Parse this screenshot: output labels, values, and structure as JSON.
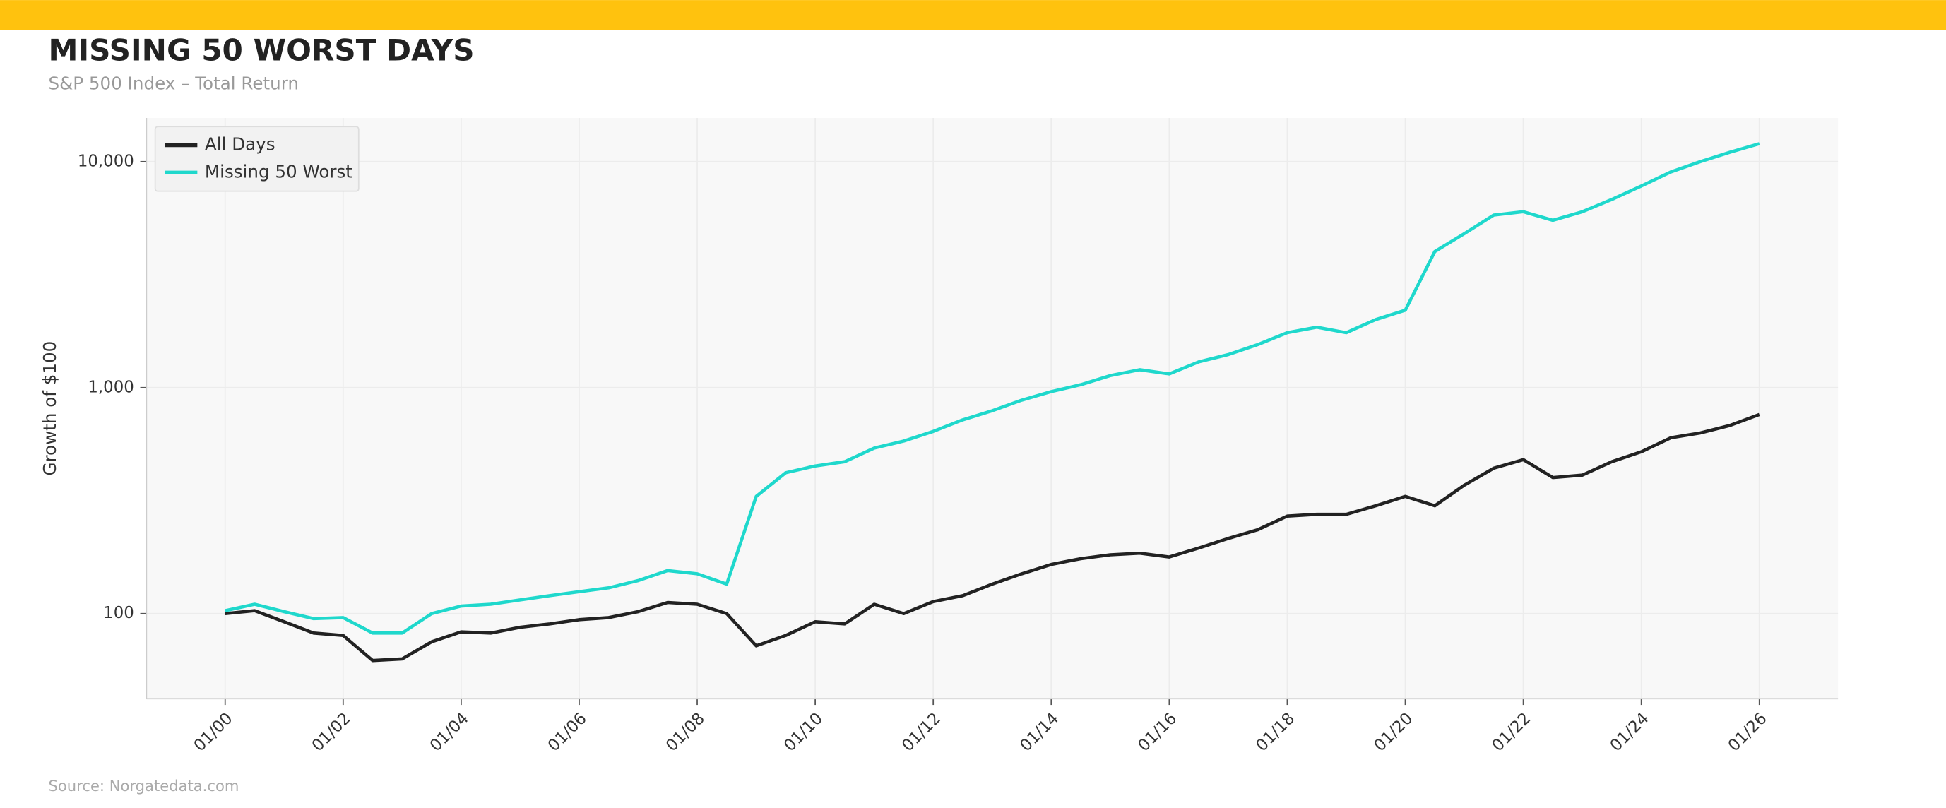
{
  "chart_data": {
    "type": "line",
    "title": "MISSING 50 WORST DAYS",
    "subtitle": "S&P 500 Index – Total Return",
    "ylabel": "Growth of $100",
    "source": "Source: Norgatedata.com",
    "log_y": true,
    "grid": true,
    "legend": "upper left",
    "x": [
      "01/00",
      "07/00",
      "01/01",
      "07/01",
      "01/02",
      "07/02",
      "01/03",
      "07/03",
      "01/04",
      "07/04",
      "01/05",
      "07/05",
      "01/06",
      "07/06",
      "01/07",
      "07/07",
      "01/08",
      "07/08",
      "01/09",
      "07/09",
      "01/10",
      "07/10",
      "01/11",
      "07/11",
      "01/12",
      "07/12",
      "01/13",
      "07/13",
      "01/14",
      "07/14",
      "01/15",
      "07/15",
      "01/16",
      "07/16",
      "01/17",
      "07/17",
      "01/18",
      "07/18",
      "01/19",
      "07/19",
      "01/20",
      "07/20",
      "01/21",
      "07/21",
      "01/22",
      "07/22",
      "01/23",
      "07/23",
      "01/24",
      "07/24",
      "01/25",
      "07/25",
      "01/26"
    ],
    "series": [
      {
        "name": "All Days",
        "color": "#222222",
        "values": [
          100,
          103,
          92,
          82,
          80,
          62,
          63,
          75,
          83,
          82,
          87,
          90,
          94,
          96,
          102,
          112,
          110,
          100,
          72,
          80,
          92,
          90,
          110,
          100,
          113,
          120,
          135,
          150,
          165,
          175,
          182,
          185,
          178,
          195,
          215,
          235,
          270,
          275,
          275,
          300,
          330,
          300,
          370,
          440,
          480,
          400,
          410,
          470,
          520,
          600,
          630,
          680,
          760
        ]
      },
      {
        "name": "Missing 50 Worst",
        "color": "#1fd8cc",
        "values": [
          103,
          110,
          102,
          95,
          96,
          82,
          82,
          100,
          108,
          110,
          115,
          120,
          125,
          130,
          140,
          155,
          150,
          135,
          330,
          420,
          450,
          470,
          540,
          580,
          640,
          720,
          790,
          880,
          960,
          1030,
          1130,
          1200,
          1150,
          1300,
          1400,
          1550,
          1750,
          1850,
          1750,
          2000,
          2200,
          4000,
          4800,
          5800,
          6000,
          5500,
          6000,
          6800,
          7800,
          9000,
          10000,
          11000,
          12000
        ]
      }
    ],
    "xlim": [
      "09/98",
      "05/27"
    ],
    "xticks": [
      "01/00",
      "01/02",
      "01/04",
      "01/06",
      "01/08",
      "01/10",
      "01/12",
      "01/14",
      "01/16",
      "01/18",
      "01/20",
      "01/22",
      "01/24",
      "01/26"
    ],
    "ylim": [
      42,
      15600
    ],
    "yticks": [
      100,
      {
        "value": 1000,
        "label": "1,000"
      },
      {
        "value": 10000,
        "label": "10,000"
      }
    ]
  }
}
